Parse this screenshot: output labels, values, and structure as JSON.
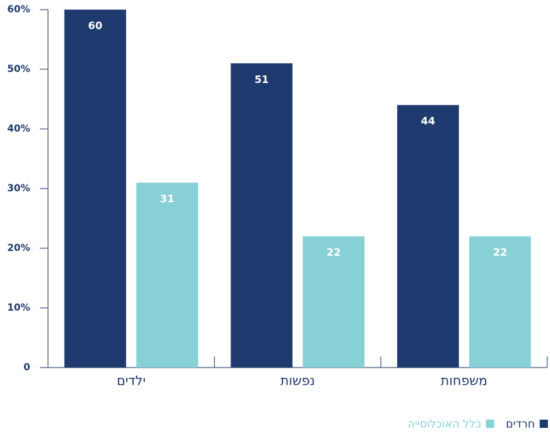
{
  "chart_data": {
    "type": "bar",
    "categories": [
      "ילדים",
      "נפשות",
      "משפחות"
    ],
    "series": [
      {
        "name": "חרדים",
        "color": "#1f3a6e",
        "values": [
          60,
          51,
          44
        ]
      },
      {
        "name": "כלל האוכלוסייה",
        "color": "#87d0d6",
        "values": [
          31,
          22,
          22
        ]
      }
    ],
    "ylim": [
      0,
      60
    ],
    "yticks": [
      0,
      {
        "value": 10,
        "label": "10%"
      },
      {
        "value": 20,
        "label": "20%"
      },
      {
        "value": 30,
        "label": "30%"
      },
      {
        "value": 40,
        "label": "40%"
      },
      {
        "value": 50,
        "label": "50%"
      },
      {
        "value": 60,
        "label": "60%"
      }
    ]
  }
}
